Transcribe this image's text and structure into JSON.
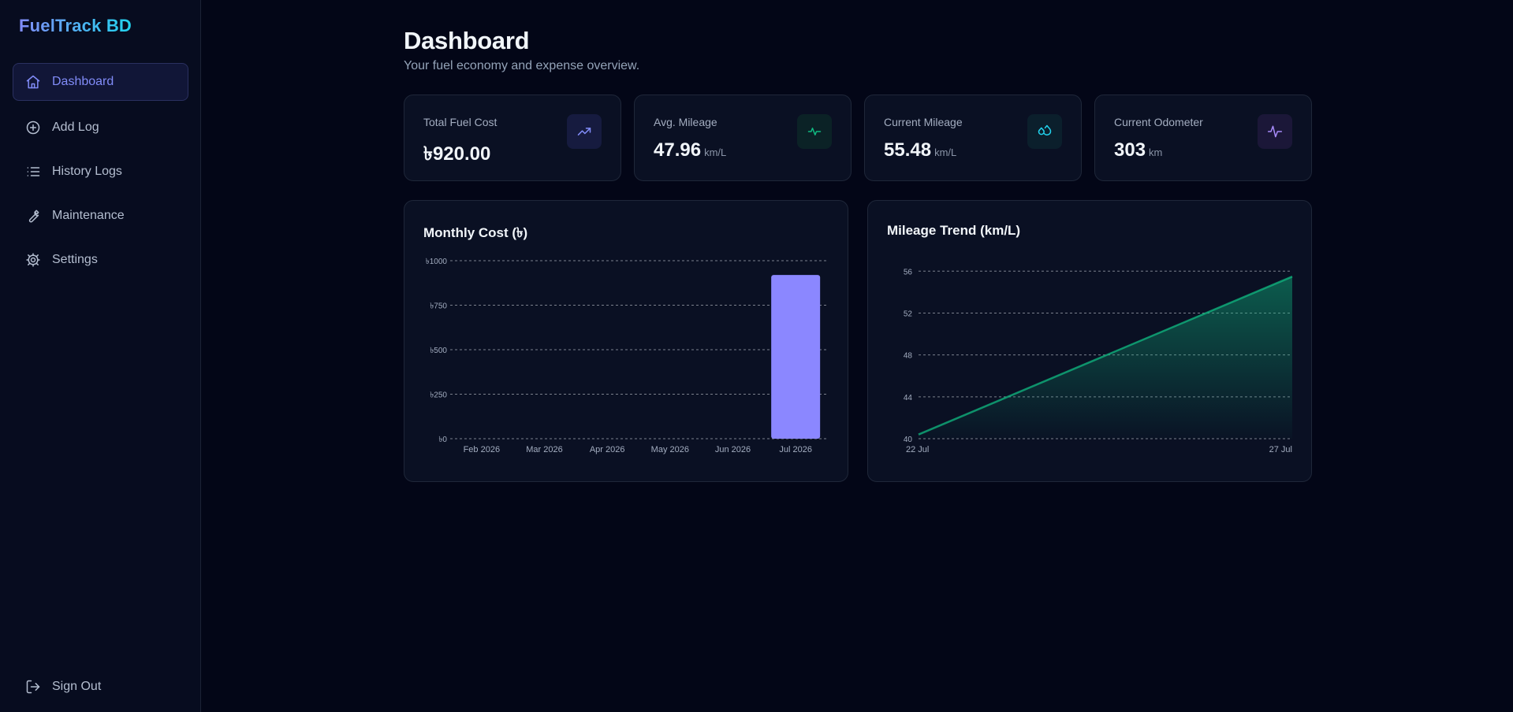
{
  "app": {
    "brand": "FuelTrack BD"
  },
  "sidebar": {
    "items": [
      {
        "label": "Dashboard",
        "icon": "home-icon",
        "active": true
      },
      {
        "label": "Add Log",
        "icon": "plus-circle-icon"
      },
      {
        "label": "History Logs",
        "icon": "list-icon"
      },
      {
        "label": "Maintenance",
        "icon": "wrench-icon"
      },
      {
        "label": "Settings",
        "icon": "gear-icon"
      }
    ],
    "signout": {
      "label": "Sign Out",
      "icon": "logout-icon"
    }
  },
  "header": {
    "title": "Dashboard",
    "subtitle": "Your fuel economy and expense overview."
  },
  "stats": [
    {
      "label": "Total Fuel Cost",
      "value": "৳920.00",
      "unit": "",
      "icon": "trending-up-icon",
      "color": "#818cf8"
    },
    {
      "label": "Avg. Mileage",
      "value": "47.96",
      "unit": "km/L",
      "icon": "activity-icon",
      "color": "#10b981"
    },
    {
      "label": "Current Mileage",
      "value": "55.48",
      "unit": "km/L",
      "icon": "droplets-icon",
      "color": "#22d3ee"
    },
    {
      "label": "Current Odometer",
      "value": "303",
      "unit": "km",
      "icon": "pulse-icon",
      "color": "#a78bfa"
    }
  ],
  "chart_data": [
    {
      "type": "bar",
      "title": "Monthly Cost (৳)",
      "categories": [
        "Feb 2026",
        "Mar 2026",
        "Apr 2026",
        "May 2026",
        "Jun 2026",
        "Jul 2026"
      ],
      "values": [
        0,
        0,
        0,
        0,
        0,
        920
      ],
      "ylim": [
        0,
        1000
      ],
      "yticks": [
        "৳0",
        "৳250",
        "৳500",
        "৳750",
        "৳1000"
      ],
      "ytick_values": [
        0,
        250,
        500,
        750,
        1000
      ],
      "grid": true,
      "color": "#8b87ff"
    },
    {
      "type": "area",
      "title": "Mileage Trend (km/L)",
      "categories": [
        "22 Jul",
        "27 Jul"
      ],
      "values": [
        40.4,
        55.48
      ],
      "ylim": [
        40,
        57
      ],
      "yticks": [
        "40",
        "44",
        "48",
        "52",
        "56"
      ],
      "ytick_values": [
        40,
        44,
        48,
        52,
        56
      ],
      "grid": true,
      "color": "#10b981"
    }
  ]
}
